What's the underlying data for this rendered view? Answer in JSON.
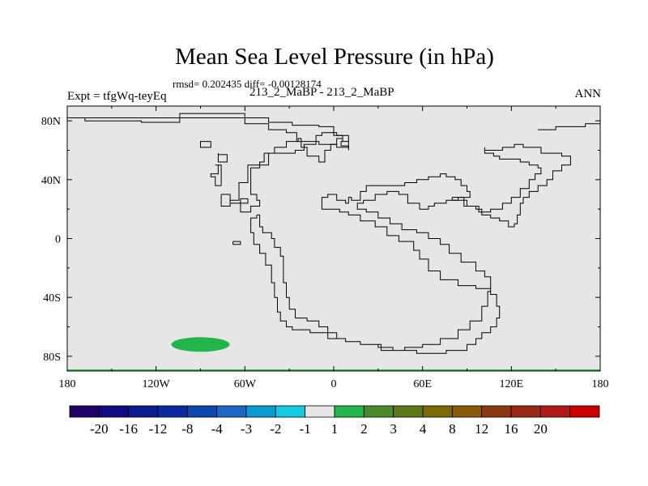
{
  "chart_data": {
    "type": "heatmap",
    "title": "Mean Sea Level Pressure (in hPa)",
    "stats_text": "rmsd= 0.202435 diff= -0.00128174",
    "left_label": "Expt = tfgWq-teyEq",
    "center_label": "213_2_MaBP - 213_2_MaBP",
    "right_label": "ANN",
    "x_axis": {
      "ticks": [
        -180,
        -120,
        -60,
        0,
        60,
        120,
        180
      ],
      "tick_labels": [
        "180",
        "120W",
        "60W",
        "0",
        "60E",
        "120E",
        "180"
      ],
      "range": [
        -180,
        180
      ]
    },
    "y_axis": {
      "ticks": [
        80,
        40,
        0,
        -40,
        -80
      ],
      "tick_labels": [
        "80N",
        "40N",
        "0",
        "40S",
        "80S"
      ],
      "range": [
        -90,
        90
      ]
    },
    "background_level": "-1 to 1",
    "anomalies": [
      {
        "name": "southern-pacific-anomaly",
        "lon": -90,
        "lat": -72,
        "bin": "1 to 2",
        "color": "#22b54a"
      },
      {
        "name": "south-pole-band",
        "lon": 0,
        "lat": -90,
        "bin": "1 to 2",
        "color": "#22b54a"
      }
    ],
    "colorbar": {
      "colors": [
        "#200066",
        "#120a80",
        "#0c1a90",
        "#0a2aa0",
        "#0f47b0",
        "#1e66c6",
        "#0a9bd0",
        "#14c9e0",
        "#e6e6e6",
        "#22b54a",
        "#4a8a2a",
        "#5c7a1a",
        "#7a6a08",
        "#885a0a",
        "#8a3a12",
        "#9a2712",
        "#b01a16",
        "#cc0000"
      ],
      "labels": [
        "-20",
        "-16",
        "-12",
        "-8",
        "-4",
        "-3",
        "-2",
        "-1",
        "1",
        "2",
        "3",
        "4",
        "8",
        "12",
        "16",
        "20"
      ]
    },
    "palaeo_coastlines": [
      [
        [
          -180,
          82
        ],
        [
          -168,
          80
        ],
        [
          -130,
          79
        ],
        [
          -120,
          79
        ],
        [
          -104,
          80
        ],
        [
          -104,
          85
        ],
        [
          -60,
          85
        ],
        [
          -60,
          78
        ],
        [
          -44,
          78
        ],
        [
          -44,
          74
        ],
        [
          -34,
          74
        ],
        [
          -32,
          72
        ],
        [
          -25,
          66
        ],
        [
          -10,
          64
        ],
        [
          2,
          62
        ],
        [
          10,
          60
        ],
        [
          10,
          63
        ],
        [
          5,
          66
        ],
        [
          6,
          70
        ],
        [
          0,
          72
        ],
        [
          0,
          76
        ],
        [
          -10,
          77
        ],
        [
          -28,
          79
        ],
        [
          -44,
          82
        ],
        [
          -60,
          82
        ],
        [
          -104,
          82
        ],
        [
          -120,
          82
        ],
        [
          -130,
          82
        ],
        [
          -168,
          82
        ],
        [
          -180,
          82
        ]
      ],
      [
        [
          -83,
          66
        ],
        [
          -83,
          62
        ],
        [
          -90,
          62
        ],
        [
          -90,
          66
        ],
        [
          -83,
          66
        ]
      ],
      [
        [
          -78,
          58
        ],
        [
          -78,
          52
        ],
        [
          -72,
          52
        ],
        [
          -72,
          57
        ],
        [
          -78,
          58
        ]
      ],
      [
        [
          -80,
          50
        ],
        [
          -78,
          44
        ],
        [
          -83,
          42
        ],
        [
          -80,
          36
        ],
        [
          -76,
          40
        ],
        [
          -76,
          50
        ],
        [
          -80,
          50
        ]
      ],
      [
        [
          -76,
          30
        ],
        [
          -70,
          24
        ],
        [
          -63,
          22
        ],
        [
          -63,
          18
        ],
        [
          -56,
          22
        ],
        [
          -50,
          26
        ],
        [
          -52,
          30
        ],
        [
          -56,
          34
        ],
        [
          -56,
          48
        ],
        [
          -50,
          52
        ],
        [
          -47,
          58
        ],
        [
          -40,
          62
        ],
        [
          -32,
          66
        ],
        [
          -24,
          68
        ],
        [
          -22,
          62
        ],
        [
          -18,
          56
        ],
        [
          -10,
          52
        ],
        [
          -6,
          60
        ],
        [
          -2,
          64
        ],
        [
          2,
          68
        ],
        [
          6,
          66
        ],
        [
          10,
          62
        ],
        [
          10,
          70
        ],
        [
          2,
          72
        ],
        [
          -8,
          70
        ],
        [
          -12,
          64
        ],
        [
          -20,
          60
        ],
        [
          -26,
          58
        ],
        [
          -36,
          58
        ],
        [
          -44,
          50
        ],
        [
          -58,
          38
        ],
        [
          -64,
          26
        ],
        [
          -70,
          22
        ],
        [
          -76,
          30
        ]
      ],
      [
        [
          -63,
          24
        ],
        [
          -58,
          24
        ],
        [
          -58,
          27
        ],
        [
          -63,
          27
        ],
        [
          -63,
          24
        ]
      ],
      [
        [
          -68,
          -2
        ],
        [
          -63,
          -2
        ],
        [
          -63,
          -4
        ],
        [
          -68,
          -4
        ],
        [
          -68,
          -2
        ]
      ],
      [
        [
          -52,
          16
        ],
        [
          -50,
          8
        ],
        [
          -48,
          4
        ],
        [
          -42,
          0
        ],
        [
          -40,
          -6
        ],
        [
          -36,
          -12
        ],
        [
          -34,
          -20
        ],
        [
          -34,
          -30
        ],
        [
          -32,
          -40
        ],
        [
          -30,
          -48
        ],
        [
          -26,
          -54
        ],
        [
          -18,
          -56
        ],
        [
          -10,
          -60
        ],
        [
          -4,
          -60
        ],
        [
          -4,
          -64
        ],
        [
          -16,
          -62
        ],
        [
          -28,
          -60
        ],
        [
          -32,
          -56
        ],
        [
          -36,
          -50
        ],
        [
          -38,
          -40
        ],
        [
          -40,
          -30
        ],
        [
          -42,
          -18
        ],
        [
          -46,
          -10
        ],
        [
          -50,
          -4
        ],
        [
          -54,
          4
        ],
        [
          -56,
          14
        ],
        [
          -52,
          16
        ]
      ],
      [
        [
          -4,
          -64
        ],
        [
          2,
          -64
        ],
        [
          2,
          -68
        ],
        [
          8,
          -70
        ],
        [
          18,
          -72
        ],
        [
          30,
          -74
        ],
        [
          40,
          -76
        ],
        [
          56,
          -78
        ],
        [
          66,
          -78
        ],
        [
          76,
          -76
        ],
        [
          90,
          -72
        ],
        [
          96,
          -68
        ],
        [
          100,
          -64
        ],
        [
          106,
          -60
        ],
        [
          110,
          -54
        ],
        [
          112,
          -46
        ],
        [
          110,
          -38
        ],
        [
          106,
          -34
        ],
        [
          96,
          -32
        ],
        [
          84,
          -28
        ],
        [
          72,
          -22
        ],
        [
          64,
          -14
        ],
        [
          58,
          -8
        ],
        [
          54,
          -2
        ],
        [
          44,
          2
        ],
        [
          36,
          8
        ],
        [
          28,
          12
        ],
        [
          18,
          16
        ],
        [
          10,
          18
        ],
        [
          4,
          20
        ],
        [
          -8,
          24
        ],
        [
          -8,
          28
        ],
        [
          -4,
          30
        ],
        [
          2,
          26
        ],
        [
          8,
          24
        ],
        [
          10,
          28
        ],
        [
          12,
          26
        ],
        [
          18,
          32
        ],
        [
          22,
          36
        ],
        [
          32,
          36
        ],
        [
          40,
          36
        ],
        [
          48,
          38
        ],
        [
          56,
          40
        ],
        [
          64,
          42
        ],
        [
          72,
          44
        ],
        [
          76,
          42
        ],
        [
          82,
          40
        ],
        [
          86,
          36
        ],
        [
          90,
          32
        ],
        [
          92,
          28
        ],
        [
          84,
          26
        ],
        [
          76,
          24
        ],
        [
          68,
          22
        ],
        [
          64,
          20
        ],
        [
          58,
          24
        ],
        [
          50,
          30
        ],
        [
          44,
          32
        ],
        [
          36,
          30
        ],
        [
          28,
          26
        ],
        [
          20,
          24
        ],
        [
          16,
          20
        ],
        [
          22,
          18
        ],
        [
          30,
          14
        ],
        [
          38,
          10
        ],
        [
          46,
          6
        ],
        [
          56,
          4
        ],
        [
          64,
          0
        ],
        [
          72,
          -4
        ],
        [
          78,
          -10
        ],
        [
          86,
          -16
        ],
        [
          96,
          -22
        ],
        [
          102,
          -26
        ],
        [
          106,
          -36
        ],
        [
          104,
          -46
        ],
        [
          100,
          -56
        ],
        [
          92,
          -62
        ],
        [
          84,
          -68
        ],
        [
          72,
          -72
        ],
        [
          60,
          -74
        ],
        [
          48,
          -76
        ],
        [
          32,
          -72
        ],
        [
          18,
          -70
        ],
        [
          8,
          -68
        ],
        [
          -4,
          -64
        ]
      ],
      [
        [
          80,
          28
        ],
        [
          88,
          22
        ],
        [
          96,
          20
        ],
        [
          100,
          16
        ],
        [
          106,
          14
        ],
        [
          112,
          12
        ],
        [
          118,
          8
        ],
        [
          122,
          10
        ],
        [
          124,
          16
        ],
        [
          126,
          24
        ],
        [
          128,
          28
        ],
        [
          132,
          32
        ],
        [
          138,
          36
        ],
        [
          144,
          40
        ],
        [
          148,
          46
        ],
        [
          154,
          50
        ],
        [
          160,
          56
        ],
        [
          154,
          58
        ],
        [
          146,
          58
        ],
        [
          140,
          62
        ],
        [
          134,
          62
        ],
        [
          128,
          64
        ],
        [
          122,
          62
        ],
        [
          114,
          60
        ],
        [
          102,
          62
        ],
        [
          102,
          58
        ],
        [
          108,
          56
        ],
        [
          112,
          54
        ],
        [
          118,
          54
        ],
        [
          126,
          52
        ],
        [
          132,
          50
        ],
        [
          138,
          48
        ],
        [
          140,
          44
        ],
        [
          136,
          40
        ],
        [
          132,
          34
        ],
        [
          126,
          28
        ],
        [
          120,
          24
        ],
        [
          114,
          20
        ],
        [
          106,
          18
        ],
        [
          98,
          22
        ],
        [
          90,
          26
        ],
        [
          80,
          28
        ]
      ],
      [
        [
          138,
          74
        ],
        [
          150,
          76
        ],
        [
          170,
          78
        ],
        [
          180,
          80
        ],
        [
          180,
          78
        ],
        [
          170,
          76
        ],
        [
          150,
          74
        ],
        [
          138,
          74
        ]
      ]
    ]
  }
}
